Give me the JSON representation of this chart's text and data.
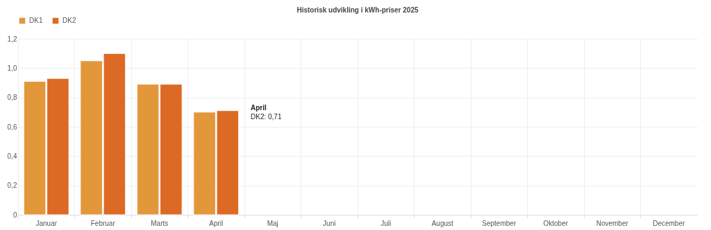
{
  "chart_data": {
    "type": "bar",
    "title": "Historisk udvikling i kWh-priser 2025",
    "categories": [
      "Januar",
      "Februar",
      "Marts",
      "April",
      "Maj",
      "Juni",
      "Juli",
      "August",
      "September",
      "Oktober",
      "November",
      "December"
    ],
    "series": [
      {
        "name": "DK1",
        "color": "#e3973b",
        "values": [
          0.91,
          1.05,
          0.89,
          0.7,
          null,
          null,
          null,
          null,
          null,
          null,
          null,
          null
        ]
      },
      {
        "name": "DK2",
        "color": "#dd6a24",
        "values": [
          0.93,
          1.1,
          0.89,
          0.71,
          null,
          null,
          null,
          null,
          null,
          null,
          null,
          null
        ]
      }
    ],
    "ylim": [
      0,
      1.2
    ],
    "yticks": [
      0,
      {
        "value": 0.2,
        "label": "0,2"
      },
      {
        "value": 0.4,
        "label": "0,4"
      },
      {
        "value": 0.6,
        "label": "0,6"
      },
      {
        "value": 0.8,
        "label": "0,8"
      },
      {
        "value": 1.0,
        "label": "1,0"
      },
      {
        "value": 1.2,
        "label": "1,2"
      }
    ],
    "grid": true,
    "legend": "top",
    "annotations": [
      "April",
      "DK2: 0,71"
    ]
  }
}
